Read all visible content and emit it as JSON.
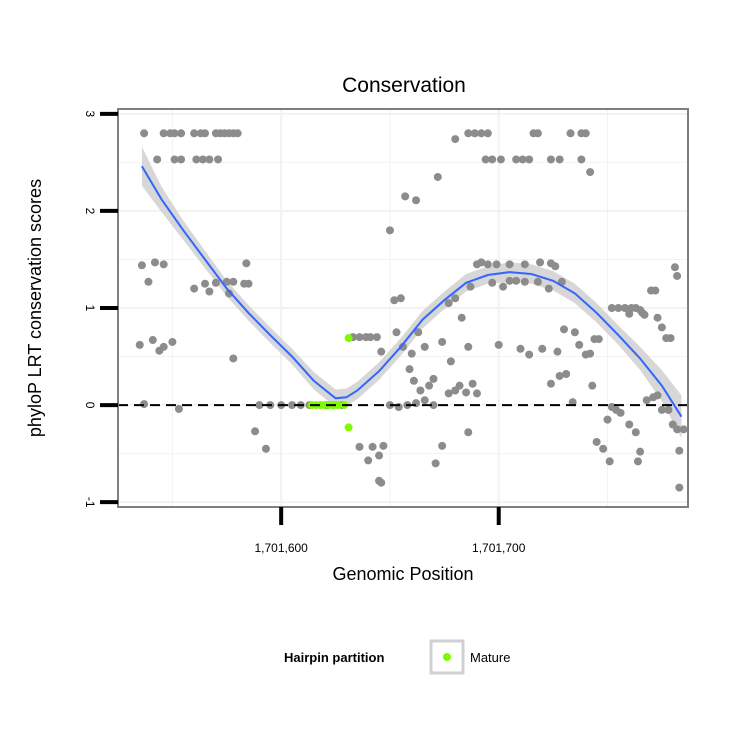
{
  "colors": {
    "points": "#8c8c8c",
    "mature": "#7cfc00",
    "smooth_line": "#3366ff",
    "ribbon": "#d0d0d0",
    "panel_border": "#7f7f7f",
    "grid": "#f2f2f2"
  },
  "chart_data": {
    "type": "scatter",
    "title": "Conservation",
    "xlabel": "Genomic Position",
    "ylabel": "phyloP LRT conservation scores",
    "xlim": [
      1701525,
      1701787
    ],
    "ylim": [
      -1.05,
      3.05
    ],
    "x_ticks": [
      {
        "value": 1701600,
        "label": "1,701,600"
      },
      {
        "value": 1701700,
        "label": "1,701,700"
      }
    ],
    "y_ticks": [
      {
        "value": -1,
        "label": "-1"
      },
      {
        "value": 0,
        "label": "0"
      },
      {
        "value": 1,
        "label": "1"
      },
      {
        "value": 2,
        "label": "2"
      },
      {
        "value": 3,
        "label": "3"
      }
    ],
    "reference_line": {
      "y": 0,
      "style": "dashed"
    },
    "grid": true,
    "legend": {
      "title": "Hairpin partition",
      "position": "bottom",
      "entries": [
        {
          "label": "Mature"
        }
      ]
    },
    "series": [
      {
        "role": "other",
        "points": [
          [
            1701537,
            2.8
          ],
          [
            1701546,
            2.8
          ],
          [
            1701549,
            2.8
          ],
          [
            1701551,
            2.8
          ],
          [
            1701554,
            2.8
          ],
          [
            1701560,
            2.8
          ],
          [
            1701563,
            2.8
          ],
          [
            1701565,
            2.8
          ],
          [
            1701570,
            2.8
          ],
          [
            1701572,
            2.8
          ],
          [
            1701574,
            2.8
          ],
          [
            1701576,
            2.8
          ],
          [
            1701578,
            2.8
          ],
          [
            1701580,
            2.8
          ],
          [
            1701543,
            2.53
          ],
          [
            1701551,
            2.53
          ],
          [
            1701554,
            2.53
          ],
          [
            1701561,
            2.53
          ],
          [
            1701564,
            2.53
          ],
          [
            1701567,
            2.53
          ],
          [
            1701571,
            2.53
          ],
          [
            1701536,
            1.44
          ],
          [
            1701542,
            1.47
          ],
          [
            1701546,
            1.45
          ],
          [
            1701539,
            1.27
          ],
          [
            1701565,
            1.25
          ],
          [
            1701570,
            1.26
          ],
          [
            1701575,
            1.27
          ],
          [
            1701578,
            1.27
          ],
          [
            1701583,
            1.25
          ],
          [
            1701585,
            1.25
          ],
          [
            1701584,
            1.46
          ],
          [
            1701560,
            1.2
          ],
          [
            1701567,
            1.17
          ],
          [
            1701576,
            1.15
          ],
          [
            1701535,
            0.62
          ],
          [
            1701541,
            0.67
          ],
          [
            1701546,
            0.6
          ],
          [
            1701550,
            0.65
          ],
          [
            1701544,
            0.56
          ],
          [
            1701578,
            0.48
          ],
          [
            1701537,
            0.01
          ],
          [
            1701553,
            -0.04
          ],
          [
            1701588,
            -0.27
          ],
          [
            1701593,
            -0.45
          ],
          [
            1701590,
            0
          ],
          [
            1701595,
            0
          ],
          [
            1701600,
            0
          ],
          [
            1701605,
            0
          ],
          [
            1701609,
            0
          ],
          [
            1701613,
            0
          ],
          [
            1701621,
            0
          ],
          [
            1701624,
            0
          ],
          [
            1701628,
            0
          ],
          [
            1701633,
            0.7
          ],
          [
            1701636,
            0.7
          ],
          [
            1701639,
            0.7
          ],
          [
            1701641,
            0.7
          ],
          [
            1701644,
            0.7
          ],
          [
            1701646,
            0.55
          ],
          [
            1701650,
            1.8
          ],
          [
            1701652,
            1.08
          ],
          [
            1701655,
            1.1
          ],
          [
            1701657,
            2.15
          ],
          [
            1701662,
            2.11
          ],
          [
            1701653,
            0.75
          ],
          [
            1701656,
            0.6
          ],
          [
            1701660,
            0.53
          ],
          [
            1701663,
            0.75
          ],
          [
            1701666,
            0.6
          ],
          [
            1701659,
            0.37
          ],
          [
            1701661,
            0.25
          ],
          [
            1701664,
            0.15
          ],
          [
            1701672,
            2.35
          ],
          [
            1701677,
            1.05
          ],
          [
            1701680,
            1.1
          ],
          [
            1701683,
            0.9
          ],
          [
            1701687,
            1.22
          ],
          [
            1701674,
            0.65
          ],
          [
            1701678,
            0.45
          ],
          [
            1701686,
            0.6
          ],
          [
            1701668,
            0.2
          ],
          [
            1701670,
            0.27
          ],
          [
            1701677,
            0.12
          ],
          [
            1701682,
            0.2
          ],
          [
            1701685,
            0.13
          ],
          [
            1701688,
            0.22
          ],
          [
            1701680,
            0.15
          ],
          [
            1701690,
            0.12
          ],
          [
            1701636,
            -0.43
          ],
          [
            1701640,
            -0.57
          ],
          [
            1701642,
            -0.43
          ],
          [
            1701645,
            -0.52
          ],
          [
            1701647,
            -0.42
          ],
          [
            1701645,
            -0.78
          ],
          [
            1701646,
            -0.8
          ],
          [
            1701650,
            0
          ],
          [
            1701654,
            -0.02
          ],
          [
            1701658,
            0
          ],
          [
            1701662,
            0.02
          ],
          [
            1701666,
            0.05
          ],
          [
            1701670,
            0
          ],
          [
            1701671,
            -0.6
          ],
          [
            1701674,
            -0.42
          ],
          [
            1701686,
            -0.28
          ],
          [
            1701680,
            2.74
          ],
          [
            1701686,
            2.8
          ],
          [
            1701689,
            2.8
          ],
          [
            1701692,
            2.8
          ],
          [
            1701695,
            2.8
          ],
          [
            1701694,
            2.53
          ],
          [
            1701697,
            2.53
          ],
          [
            1701701,
            2.53
          ],
          [
            1701708,
            2.53
          ],
          [
            1701711,
            2.53
          ],
          [
            1701714,
            2.53
          ],
          [
            1701716,
            2.8
          ],
          [
            1701718,
            2.8
          ],
          [
            1701724,
            2.53
          ],
          [
            1701728,
            2.53
          ],
          [
            1701733,
            2.8
          ],
          [
            1701738,
            2.8
          ],
          [
            1701740,
            2.8
          ],
          [
            1701738,
            2.53
          ],
          [
            1701742,
            2.4
          ],
          [
            1701690,
            1.45
          ],
          [
            1701692,
            1.47
          ],
          [
            1701695,
            1.45
          ],
          [
            1701699,
            1.45
          ],
          [
            1701705,
            1.45
          ],
          [
            1701712,
            1.45
          ],
          [
            1701719,
            1.47
          ],
          [
            1701724,
            1.46
          ],
          [
            1701726,
            1.43
          ],
          [
            1701697,
            1.26
          ],
          [
            1701702,
            1.22
          ],
          [
            1701705,
            1.28
          ],
          [
            1701708,
            1.28
          ],
          [
            1701712,
            1.27
          ],
          [
            1701718,
            1.27
          ],
          [
            1701723,
            1.2
          ],
          [
            1701729,
            1.27
          ],
          [
            1701700,
            0.62
          ],
          [
            1701710,
            0.58
          ],
          [
            1701714,
            0.52
          ],
          [
            1701720,
            0.58
          ],
          [
            1701727,
            0.55
          ],
          [
            1701730,
            0.78
          ],
          [
            1701735,
            0.75
          ],
          [
            1701737,
            0.62
          ],
          [
            1701740,
            0.52
          ],
          [
            1701742,
            0.53
          ],
          [
            1701744,
            0.68
          ],
          [
            1701746,
            0.68
          ],
          [
            1701724,
            0.22
          ],
          [
            1701728,
            0.3
          ],
          [
            1701731,
            0.32
          ],
          [
            1701734,
            0.03
          ],
          [
            1701743,
            0.2
          ],
          [
            1701745,
            -0.38
          ],
          [
            1701752,
            1
          ],
          [
            1701755,
            1
          ],
          [
            1701758,
            1
          ],
          [
            1701761,
            1
          ],
          [
            1701763,
            1
          ],
          [
            1701765,
            0.98
          ],
          [
            1701766,
            0.95
          ],
          [
            1701760,
            0.94
          ],
          [
            1701767,
            0.93
          ],
          [
            1701770,
            1.18
          ],
          [
            1701772,
            1.18
          ],
          [
            1701773,
            0.9
          ],
          [
            1701775,
            0.8
          ],
          [
            1701777,
            0.69
          ],
          [
            1701779,
            0.69
          ],
          [
            1701781,
            1.42
          ],
          [
            1701782,
            1.33
          ],
          [
            1701750,
            -0.15
          ],
          [
            1701752,
            -0.02
          ],
          [
            1701754,
            -0.05
          ],
          [
            1701756,
            -0.08
          ],
          [
            1701760,
            -0.2
          ],
          [
            1701763,
            -0.28
          ],
          [
            1701768,
            0.05
          ],
          [
            1701771,
            0.08
          ],
          [
            1701773,
            0.1
          ],
          [
            1701775,
            -0.05
          ],
          [
            1701778,
            -0.05
          ],
          [
            1701780,
            -0.2
          ],
          [
            1701782,
            -0.25
          ],
          [
            1701783,
            -0.47
          ],
          [
            1701785,
            -0.25
          ],
          [
            1701748,
            -0.45
          ],
          [
            1701751,
            -0.58
          ],
          [
            1701765,
            -0.48
          ],
          [
            1701764,
            -0.58
          ],
          [
            1701783,
            -0.85
          ]
        ]
      },
      {
        "name": "Mature",
        "role": "mature",
        "points": [
          [
            1701614,
            0
          ],
          [
            1701616,
            0
          ],
          [
            1701618,
            0
          ],
          [
            1701620,
            0
          ],
          [
            1701622,
            0
          ],
          [
            1701624,
            0
          ],
          [
            1701626,
            0
          ],
          [
            1701629,
            0
          ],
          [
            1701631,
            0.69
          ],
          [
            1701631,
            -0.23
          ]
        ]
      }
    ],
    "smooth": {
      "method": "loess",
      "x": [
        1701536,
        1701545,
        1701555,
        1701565,
        1701575,
        1701585,
        1701595,
        1701605,
        1701615,
        1701625,
        1701630,
        1701635,
        1701645,
        1701655,
        1701665,
        1701675,
        1701685,
        1701695,
        1701705,
        1701715,
        1701725,
        1701735,
        1701745,
        1701755,
        1701765,
        1701775,
        1701784
      ],
      "y": [
        2.46,
        2.12,
        1.8,
        1.5,
        1.2,
        0.95,
        0.72,
        0.5,
        0.25,
        0.07,
        0.08,
        0.15,
        0.35,
        0.6,
        0.88,
        1.08,
        1.26,
        1.34,
        1.37,
        1.35,
        1.28,
        1.15,
        0.95,
        0.72,
        0.48,
        0.2,
        -0.12
      ],
      "ci_halfwidth": [
        0.2,
        0.13,
        0.1,
        0.09,
        0.08,
        0.08,
        0.08,
        0.08,
        0.09,
        0.09,
        0.09,
        0.09,
        0.09,
        0.09,
        0.09,
        0.09,
        0.09,
        0.09,
        0.1,
        0.1,
        0.1,
        0.1,
        0.1,
        0.1,
        0.12,
        0.16,
        0.22
      ]
    }
  }
}
